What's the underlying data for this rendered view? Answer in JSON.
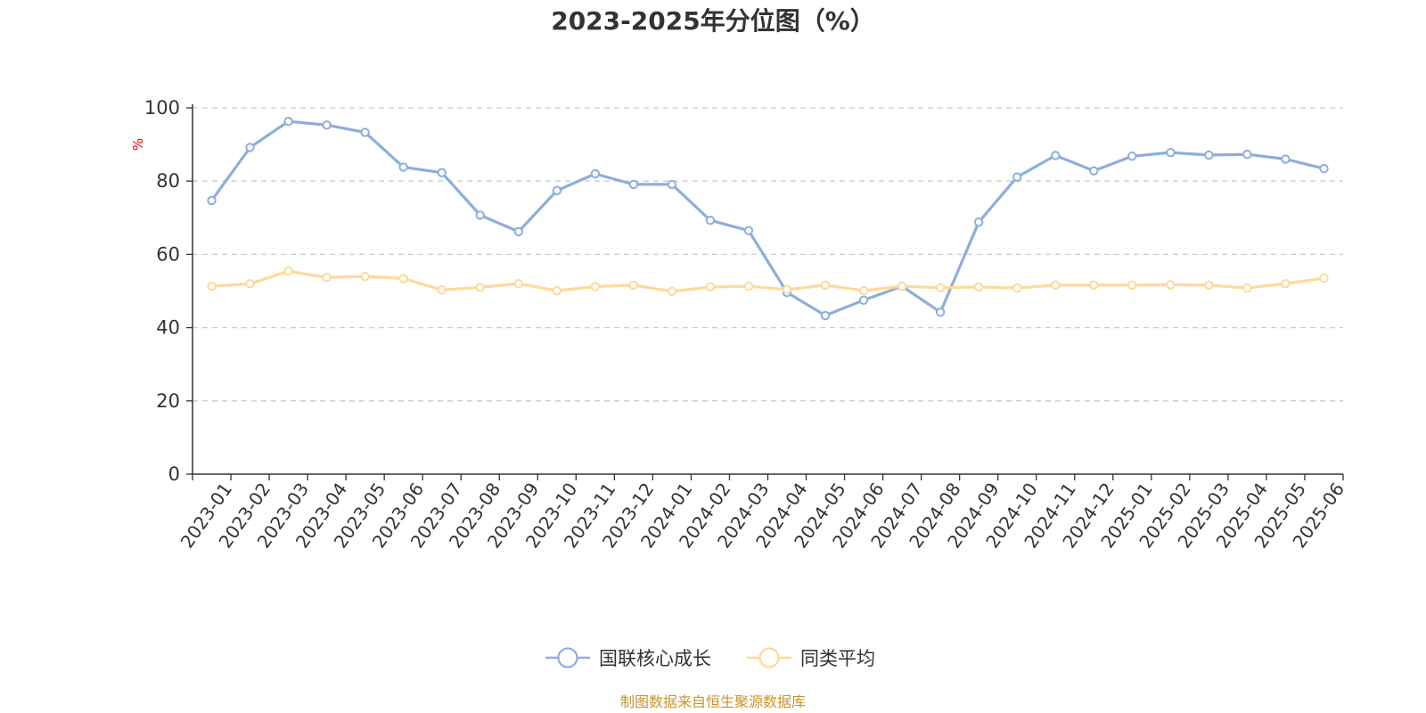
{
  "chart_data": {
    "type": "line",
    "title": "2023-2025年分位图（%）",
    "ylabel": "%",
    "ylim": [
      0,
      100
    ],
    "yticks": [
      0,
      20,
      40,
      60,
      80,
      100
    ],
    "grid": true,
    "legend_position": "bottom-center",
    "categories": [
      "2023-01",
      "2023-02",
      "2023-03",
      "2023-04",
      "2023-05",
      "2023-06",
      "2023-07",
      "2023-08",
      "2023-09",
      "2023-10",
      "2023-11",
      "2023-12",
      "2024-01",
      "2024-02",
      "2024-03",
      "2024-04",
      "2024-05",
      "2024-06",
      "2024-07",
      "2024-08",
      "2024-09",
      "2024-10",
      "2024-11",
      "2024-12",
      "2025-01",
      "2025-02",
      "2025-03",
      "2025-04",
      "2025-05",
      "2025-06"
    ],
    "series": [
      {
        "name": "国联核心成长",
        "color": "#8eaedb",
        "values": [
          74.7,
          89.2,
          96.3,
          95.3,
          93.3,
          83.8,
          82.3,
          70.7,
          66.2,
          77.4,
          82.0,
          79.1,
          79.1,
          69.3,
          66.5,
          49.6,
          43.3,
          47.5,
          51.3,
          44.2,
          68.8,
          81.1,
          87.0,
          82.8,
          86.8,
          87.8,
          87.1,
          87.3,
          86.0,
          83.4
        ]
      },
      {
        "name": "同类平均",
        "color": "#fdd99b",
        "values": [
          51.3,
          52.0,
          55.4,
          53.7,
          54.0,
          53.4,
          50.3,
          51.0,
          52.0,
          50.1,
          51.2,
          51.6,
          49.9,
          51.1,
          51.3,
          50.4,
          51.6,
          50.1,
          51.3,
          50.9,
          51.1,
          50.8,
          51.6,
          51.6,
          51.6,
          51.7,
          51.6,
          50.8,
          52.0,
          53.5
        ]
      }
    ],
    "source": "制图数据来自恒生聚源数据库"
  }
}
